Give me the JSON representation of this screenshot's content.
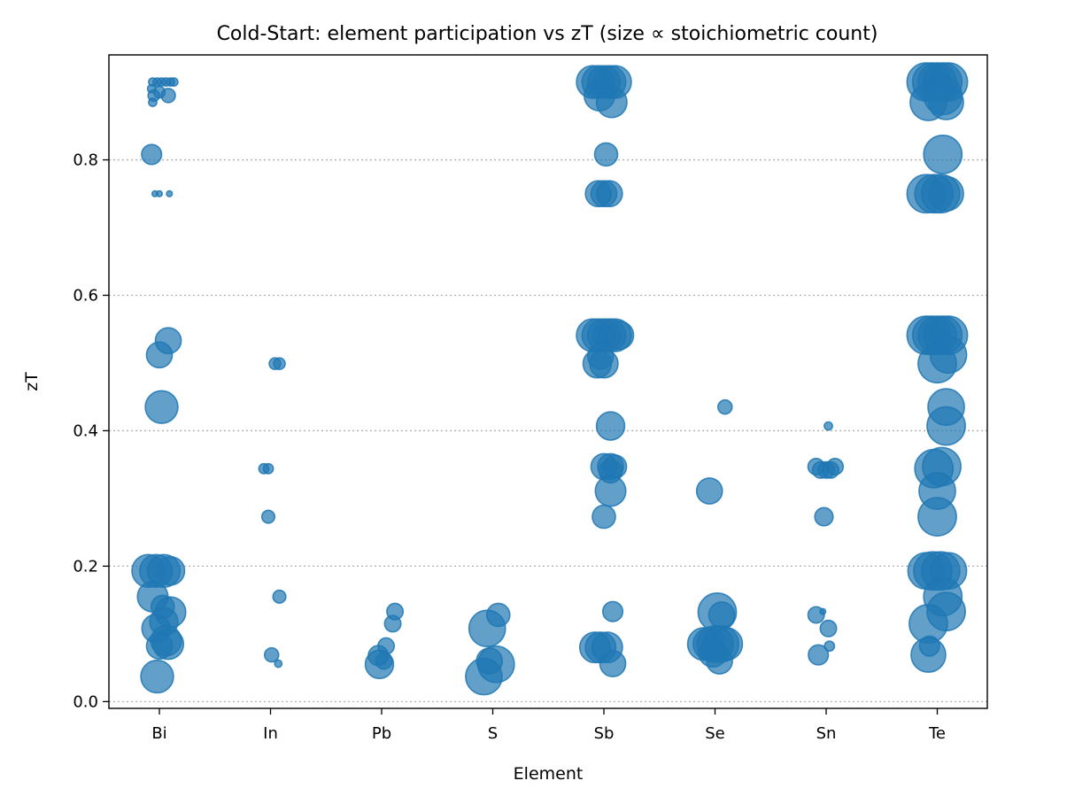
{
  "chart_data": {
    "type": "scatter",
    "title": "Cold-Start: element participation vs zT (size ∝ stoichiometric count)",
    "xlabel": "Element",
    "ylabel": "zT",
    "categories": [
      "Bi",
      "In",
      "Pb",
      "S",
      "Sb",
      "Se",
      "Sn",
      "Te"
    ],
    "ylim": [
      -0.01,
      0.955
    ],
    "yticks": [
      0.0,
      0.2,
      0.4,
      0.6,
      0.8
    ],
    "ytick_labels": [
      "0.0",
      "0.2",
      "0.4",
      "0.6",
      "0.8"
    ],
    "grid": "y-dotted",
    "legend": "none",
    "color": "#1f77b4",
    "point_alpha": 0.7,
    "size_unit_note": "size = relative stoichiometric count (area)",
    "points": [
      {
        "el": "Bi",
        "jit": -0.06,
        "zT": 0.915,
        "s": 1
      },
      {
        "el": "Bi",
        "jit": -0.02,
        "zT": 0.915,
        "s": 1
      },
      {
        "el": "Bi",
        "jit": 0.02,
        "zT": 0.915,
        "s": 1
      },
      {
        "el": "Bi",
        "jit": 0.06,
        "zT": 0.915,
        "s": 1
      },
      {
        "el": "Bi",
        "jit": 0.1,
        "zT": 0.915,
        "s": 1
      },
      {
        "el": "Bi",
        "jit": 0.13,
        "zT": 0.915,
        "s": 1
      },
      {
        "el": "Bi",
        "jit": -0.07,
        "zT": 0.905,
        "s": 1
      },
      {
        "el": "Bi",
        "jit": 0.0,
        "zT": 0.9,
        "s": 2
      },
      {
        "el": "Bi",
        "jit": -0.05,
        "zT": 0.895,
        "s": 2
      },
      {
        "el": "Bi",
        "jit": 0.08,
        "zT": 0.895,
        "s": 3
      },
      {
        "el": "Bi",
        "jit": -0.06,
        "zT": 0.885,
        "s": 1
      },
      {
        "el": "Bi",
        "jit": -0.07,
        "zT": 0.808,
        "s": 6
      },
      {
        "el": "Bi",
        "jit": -0.04,
        "zT": 0.75,
        "s": 0.5
      },
      {
        "el": "Bi",
        "jit": 0.0,
        "zT": 0.75,
        "s": 0.5
      },
      {
        "el": "Bi",
        "jit": 0.09,
        "zT": 0.75,
        "s": 0.5
      },
      {
        "el": "Bi",
        "jit": 0.08,
        "zT": 0.533,
        "s": 10
      },
      {
        "el": "Bi",
        "jit": 0.0,
        "zT": 0.512,
        "s": 10
      },
      {
        "el": "Bi",
        "jit": 0.02,
        "zT": 0.435,
        "s": 16
      },
      {
        "el": "Bi",
        "jit": -0.1,
        "zT": 0.193,
        "s": 16
      },
      {
        "el": "Bi",
        "jit": -0.03,
        "zT": 0.193,
        "s": 16
      },
      {
        "el": "Bi",
        "jit": 0.04,
        "zT": 0.193,
        "s": 16
      },
      {
        "el": "Bi",
        "jit": 0.1,
        "zT": 0.193,
        "s": 12
      },
      {
        "el": "Bi",
        "jit": -0.06,
        "zT": 0.155,
        "s": 14
      },
      {
        "el": "Bi",
        "jit": 0.03,
        "zT": 0.14,
        "s": 8
      },
      {
        "el": "Bi",
        "jit": 0.1,
        "zT": 0.132,
        "s": 14
      },
      {
        "el": "Bi",
        "jit": 0.04,
        "zT": 0.118,
        "s": 12
      },
      {
        "el": "Bi",
        "jit": -0.03,
        "zT": 0.108,
        "s": 12
      },
      {
        "el": "Bi",
        "jit": 0.06,
        "zT": 0.09,
        "s": 14
      },
      {
        "el": "Bi",
        "jit": 0.08,
        "zT": 0.085,
        "s": 14
      },
      {
        "el": "Bi",
        "jit": 0.0,
        "zT": 0.082,
        "s": 10
      },
      {
        "el": "Bi",
        "jit": -0.02,
        "zT": 0.037,
        "s": 16
      },
      {
        "el": "In",
        "jit": -0.06,
        "zT": 0.344,
        "s": 1.5
      },
      {
        "el": "In",
        "jit": -0.02,
        "zT": 0.344,
        "s": 1.5
      },
      {
        "el": "In",
        "jit": 0.04,
        "zT": 0.499,
        "s": 2
      },
      {
        "el": "In",
        "jit": 0.08,
        "zT": 0.499,
        "s": 2
      },
      {
        "el": "In",
        "jit": -0.02,
        "zT": 0.273,
        "s": 2.5
      },
      {
        "el": "In",
        "jit": 0.08,
        "zT": 0.155,
        "s": 2.5
      },
      {
        "el": "In",
        "jit": 0.01,
        "zT": 0.069,
        "s": 3
      },
      {
        "el": "In",
        "jit": 0.07,
        "zT": 0.056,
        "s": 0.8
      },
      {
        "el": "Pb",
        "jit": 0.12,
        "zT": 0.133,
        "s": 4
      },
      {
        "el": "Pb",
        "jit": 0.1,
        "zT": 0.115,
        "s": 4
      },
      {
        "el": "Pb",
        "jit": 0.04,
        "zT": 0.082,
        "s": 4
      },
      {
        "el": "Pb",
        "jit": -0.03,
        "zT": 0.068,
        "s": 6
      },
      {
        "el": "Pb",
        "jit": 0.02,
        "zT": 0.06,
        "s": 4
      },
      {
        "el": "Pb",
        "jit": -0.02,
        "zT": 0.055,
        "s": 12
      },
      {
        "el": "S",
        "jit": 0.05,
        "zT": 0.128,
        "s": 8
      },
      {
        "el": "S",
        "jit": -0.05,
        "zT": 0.108,
        "s": 20
      },
      {
        "el": "S",
        "jit": -0.03,
        "zT": 0.06,
        "s": 10
      },
      {
        "el": "S",
        "jit": 0.03,
        "zT": 0.055,
        "s": 20
      },
      {
        "el": "S",
        "jit": -0.08,
        "zT": 0.037,
        "s": 20
      },
      {
        "el": "Sb",
        "jit": -0.1,
        "zT": 0.915,
        "s": 16
      },
      {
        "el": "Sb",
        "jit": -0.05,
        "zT": 0.915,
        "s": 16
      },
      {
        "el": "Sb",
        "jit": 0.0,
        "zT": 0.915,
        "s": 16
      },
      {
        "el": "Sb",
        "jit": 0.05,
        "zT": 0.915,
        "s": 16
      },
      {
        "el": "Sb",
        "jit": 0.1,
        "zT": 0.915,
        "s": 16
      },
      {
        "el": "Sb",
        "jit": -0.04,
        "zT": 0.895,
        "s": 14
      },
      {
        "el": "Sb",
        "jit": 0.07,
        "zT": 0.885,
        "s": 14
      },
      {
        "el": "Sb",
        "jit": 0.02,
        "zT": 0.808,
        "s": 8
      },
      {
        "el": "Sb",
        "jit": -0.05,
        "zT": 0.75,
        "s": 10
      },
      {
        "el": "Sb",
        "jit": 0.0,
        "zT": 0.75,
        "s": 10
      },
      {
        "el": "Sb",
        "jit": 0.05,
        "zT": 0.75,
        "s": 10
      },
      {
        "el": "Sb",
        "jit": -0.1,
        "zT": 0.541,
        "s": 16
      },
      {
        "el": "Sb",
        "jit": -0.05,
        "zT": 0.541,
        "s": 16
      },
      {
        "el": "Sb",
        "jit": 0.0,
        "zT": 0.541,
        "s": 16
      },
      {
        "el": "Sb",
        "jit": 0.05,
        "zT": 0.541,
        "s": 16
      },
      {
        "el": "Sb",
        "jit": 0.1,
        "zT": 0.541,
        "s": 16
      },
      {
        "el": "Sb",
        "jit": 0.14,
        "zT": 0.541,
        "s": 12
      },
      {
        "el": "Sb",
        "jit": -0.03,
        "zT": 0.51,
        "s": 10
      },
      {
        "el": "Sb",
        "jit": -0.06,
        "zT": 0.499,
        "s": 12
      },
      {
        "el": "Sb",
        "jit": 0.0,
        "zT": 0.499,
        "s": 12
      },
      {
        "el": "Sb",
        "jit": 0.06,
        "zT": 0.407,
        "s": 12
      },
      {
        "el": "Sb",
        "jit": 0.0,
        "zT": 0.347,
        "s": 10
      },
      {
        "el": "Sb",
        "jit": 0.06,
        "zT": 0.347,
        "s": 10
      },
      {
        "el": "Sb",
        "jit": 0.1,
        "zT": 0.347,
        "s": 8
      },
      {
        "el": "Sb",
        "jit": 0.06,
        "zT": 0.34,
        "s": 8
      },
      {
        "el": "Sb",
        "jit": 0.06,
        "zT": 0.311,
        "s": 14
      },
      {
        "el": "Sb",
        "jit": 0.0,
        "zT": 0.273,
        "s": 8
      },
      {
        "el": "Sb",
        "jit": 0.08,
        "zT": 0.133,
        "s": 6
      },
      {
        "el": "Sb",
        "jit": -0.08,
        "zT": 0.08,
        "s": 14
      },
      {
        "el": "Sb",
        "jit": -0.03,
        "zT": 0.08,
        "s": 14
      },
      {
        "el": "Sb",
        "jit": 0.03,
        "zT": 0.08,
        "s": 14
      },
      {
        "el": "Sb",
        "jit": 0.08,
        "zT": 0.056,
        "s": 10
      },
      {
        "el": "Se",
        "jit": 0.09,
        "zT": 0.435,
        "s": 3
      },
      {
        "el": "Se",
        "jit": -0.05,
        "zT": 0.311,
        "s": 10
      },
      {
        "el": "Se",
        "jit": 0.02,
        "zT": 0.132,
        "s": 22
      },
      {
        "el": "Se",
        "jit": 0.06,
        "zT": 0.128,
        "s": 10
      },
      {
        "el": "Se",
        "jit": -0.1,
        "zT": 0.085,
        "s": 16
      },
      {
        "el": "Se",
        "jit": -0.05,
        "zT": 0.085,
        "s": 16
      },
      {
        "el": "Se",
        "jit": 0.0,
        "zT": 0.085,
        "s": 20
      },
      {
        "el": "Se",
        "jit": 0.05,
        "zT": 0.085,
        "s": 20
      },
      {
        "el": "Se",
        "jit": 0.1,
        "zT": 0.085,
        "s": 16
      },
      {
        "el": "Se",
        "jit": -0.02,
        "zT": 0.072,
        "s": 12
      },
      {
        "el": "Se",
        "jit": 0.04,
        "zT": 0.06,
        "s": 10
      },
      {
        "el": "Sn",
        "jit": 0.02,
        "zT": 0.407,
        "s": 1
      },
      {
        "el": "Sn",
        "jit": -0.09,
        "zT": 0.347,
        "s": 4
      },
      {
        "el": "Sn",
        "jit": -0.05,
        "zT": 0.342,
        "s": 4
      },
      {
        "el": "Sn",
        "jit": 0.0,
        "zT": 0.342,
        "s": 4
      },
      {
        "el": "Sn",
        "jit": 0.04,
        "zT": 0.342,
        "s": 4
      },
      {
        "el": "Sn",
        "jit": 0.08,
        "zT": 0.347,
        "s": 4
      },
      {
        "el": "Sn",
        "jit": -0.02,
        "zT": 0.273,
        "s": 5
      },
      {
        "el": "Sn",
        "jit": -0.09,
        "zT": 0.128,
        "s": 4
      },
      {
        "el": "Sn",
        "jit": -0.03,
        "zT": 0.133,
        "s": 0.5
      },
      {
        "el": "Sn",
        "jit": 0.02,
        "zT": 0.108,
        "s": 4
      },
      {
        "el": "Sn",
        "jit": 0.03,
        "zT": 0.082,
        "s": 1.5
      },
      {
        "el": "Sn",
        "jit": -0.07,
        "zT": 0.069,
        "s": 6
      },
      {
        "el": "Te",
        "jit": -0.1,
        "zT": 0.915,
        "s": 22
      },
      {
        "el": "Te",
        "jit": -0.05,
        "zT": 0.915,
        "s": 22
      },
      {
        "el": "Te",
        "jit": 0.0,
        "zT": 0.915,
        "s": 22
      },
      {
        "el": "Te",
        "jit": 0.05,
        "zT": 0.915,
        "s": 22
      },
      {
        "el": "Te",
        "jit": 0.1,
        "zT": 0.915,
        "s": 22
      },
      {
        "el": "Te",
        "jit": 0.05,
        "zT": 0.895,
        "s": 22
      },
      {
        "el": "Te",
        "jit": -0.08,
        "zT": 0.885,
        "s": 20
      },
      {
        "el": "Te",
        "jit": 0.08,
        "zT": 0.885,
        "s": 18
      },
      {
        "el": "Te",
        "jit": 0.05,
        "zT": 0.808,
        "s": 22
      },
      {
        "el": "Te",
        "jit": -0.1,
        "zT": 0.75,
        "s": 22
      },
      {
        "el": "Te",
        "jit": -0.03,
        "zT": 0.75,
        "s": 22
      },
      {
        "el": "Te",
        "jit": 0.03,
        "zT": 0.75,
        "s": 22
      },
      {
        "el": "Te",
        "jit": 0.08,
        "zT": 0.75,
        "s": 18
      },
      {
        "el": "Te",
        "jit": -0.1,
        "zT": 0.541,
        "s": 22
      },
      {
        "el": "Te",
        "jit": -0.05,
        "zT": 0.541,
        "s": 22
      },
      {
        "el": "Te",
        "jit": 0.0,
        "zT": 0.541,
        "s": 22
      },
      {
        "el": "Te",
        "jit": 0.05,
        "zT": 0.541,
        "s": 22
      },
      {
        "el": "Te",
        "jit": 0.1,
        "zT": 0.541,
        "s": 22
      },
      {
        "el": "Te",
        "jit": 0.1,
        "zT": 0.512,
        "s": 20
      },
      {
        "el": "Te",
        "jit": 0.0,
        "zT": 0.499,
        "s": 22
      },
      {
        "el": "Te",
        "jit": 0.08,
        "zT": 0.435,
        "s": 20
      },
      {
        "el": "Te",
        "jit": 0.08,
        "zT": 0.407,
        "s": 22
      },
      {
        "el": "Te",
        "jit": -0.03,
        "zT": 0.344,
        "s": 22
      },
      {
        "el": "Te",
        "jit": 0.04,
        "zT": 0.347,
        "s": 22
      },
      {
        "el": "Te",
        "jit": 0.0,
        "zT": 0.311,
        "s": 20
      },
      {
        "el": "Te",
        "jit": 0.0,
        "zT": 0.273,
        "s": 22
      },
      {
        "el": "Te",
        "jit": -0.1,
        "zT": 0.193,
        "s": 20
      },
      {
        "el": "Te",
        "jit": -0.04,
        "zT": 0.193,
        "s": 22
      },
      {
        "el": "Te",
        "jit": 0.03,
        "zT": 0.193,
        "s": 22
      },
      {
        "el": "Te",
        "jit": 0.1,
        "zT": 0.193,
        "s": 20
      },
      {
        "el": "Te",
        "jit": 0.05,
        "zT": 0.155,
        "s": 22
      },
      {
        "el": "Te",
        "jit": 0.08,
        "zT": 0.133,
        "s": 22
      },
      {
        "el": "Te",
        "jit": -0.08,
        "zT": 0.115,
        "s": 22
      },
      {
        "el": "Te",
        "jit": -0.07,
        "zT": 0.082,
        "s": 6
      },
      {
        "el": "Te",
        "jit": -0.08,
        "zT": 0.069,
        "s": 18
      }
    ]
  }
}
